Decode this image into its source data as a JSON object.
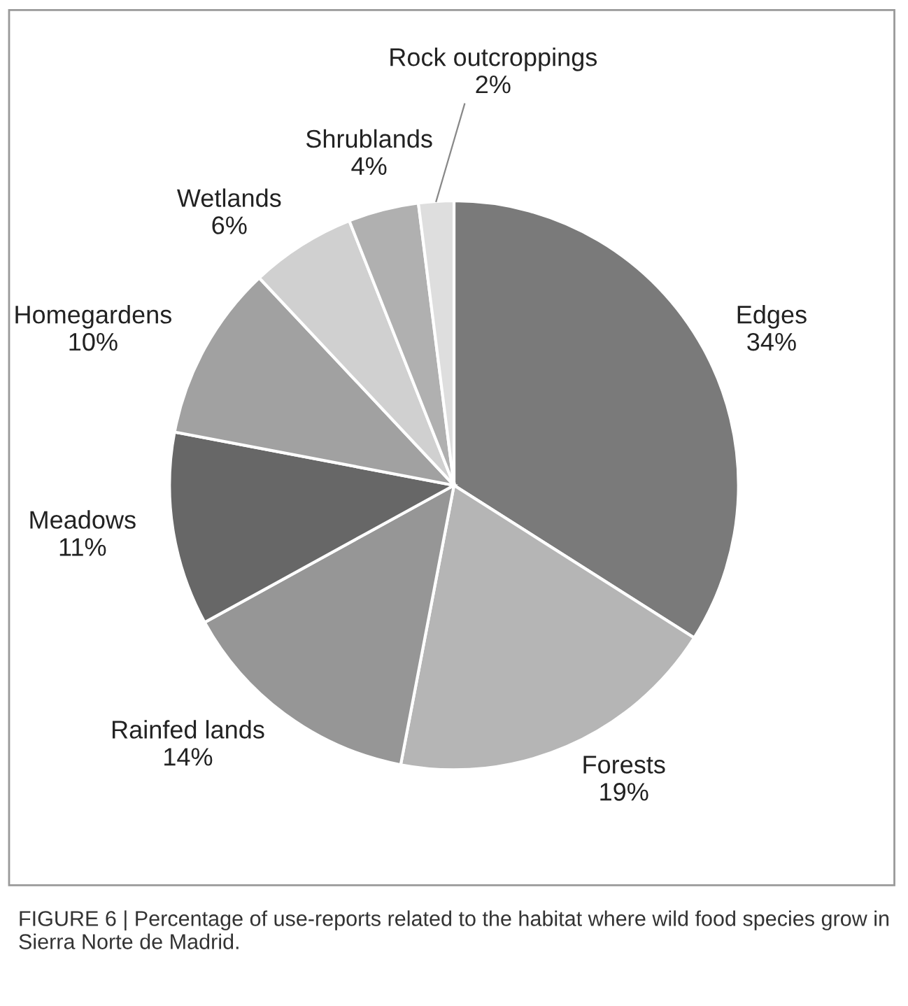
{
  "chart_data": {
    "type": "pie",
    "categories": [
      "Edges",
      "Forests",
      "Rainfed lands",
      "Meadows",
      "Homegardens",
      "Wetlands",
      "Shrublands",
      "Rock outcroppings"
    ],
    "values": [
      34,
      19,
      14,
      11,
      10,
      6,
      4,
      2
    ],
    "value_labels": [
      "34%",
      "19%",
      "14%",
      "11%",
      "10%",
      "6%",
      "4%",
      "2%"
    ],
    "colors": [
      "#7a7a7a",
      "#b5b5b5",
      "#969696",
      "#676767",
      "#a1a1a1",
      "#d0d0d0",
      "#b0b0b0",
      "#dedede"
    ],
    "annotations": [
      "FIGURE 6 | Percentage of use-reports related to the habitat where wild food species grow in Sierra Norte de Madrid."
    ]
  }
}
